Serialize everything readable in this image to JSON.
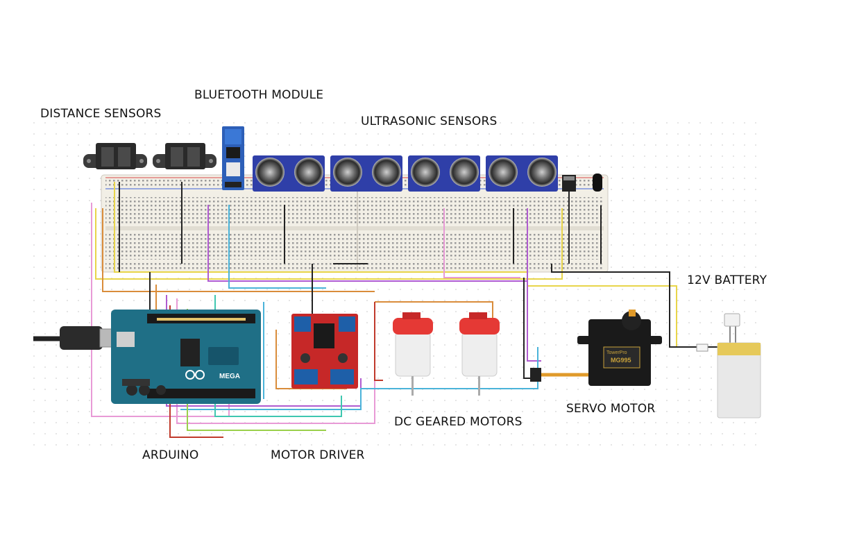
{
  "labels": {
    "distance_sensors": "DISTANCE SENSORS",
    "bluetooth_module": "BLUETOOTH MODULE",
    "ultrasonic_sensors": "ULTRASONIC SENSORS",
    "battery": "12V BATTERY",
    "servo_motor": "SERVO MOTOR",
    "dc_geared_motors": "DC GEARED MOTORS",
    "arduino": "ARDUINO",
    "motor_driver": "MOTOR DRIVER"
  },
  "components": {
    "arduino_logo_text": "MEGA",
    "servo_model": "MG995",
    "servo_brand": "TowerPro"
  },
  "colors": {
    "arduino_board": "#1f6f86",
    "motor_driver_board": "#c62828",
    "ultrasonic_board": "#2f3fa8",
    "motor_can": "#e53935",
    "battery_body": "#e8e8e8",
    "wire_colors": [
      "#e8d54a",
      "#d98c3a",
      "#b05bd0",
      "#4ab3d9",
      "#e89ad6",
      "#222222",
      "#c0392b",
      "#3fc7b0",
      "#9ad04a"
    ]
  }
}
